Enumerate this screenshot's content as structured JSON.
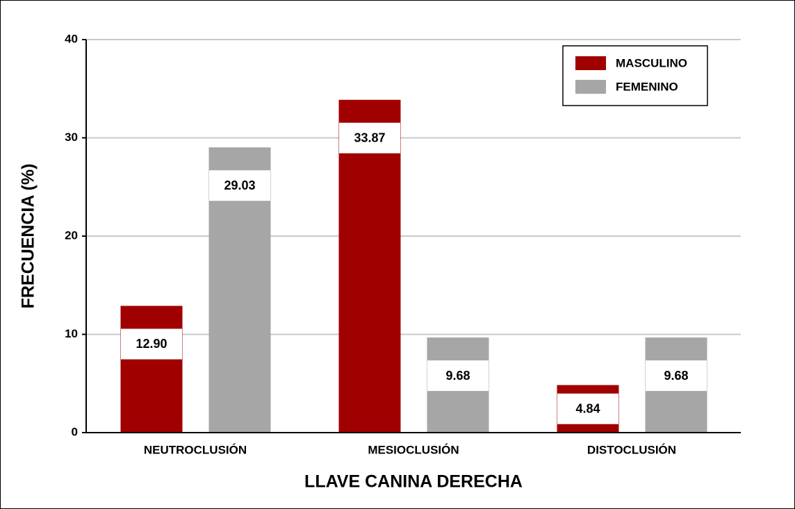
{
  "chart_data": {
    "type": "bar",
    "xlabel": "LLAVE CANINA DERECHA",
    "ylabel": "FRECUENCIA (%)",
    "categories": [
      "NEUTROCLUSIÓN",
      "MESIOCLUSIÓN",
      "DISTOCLUSIÓN"
    ],
    "series": [
      {
        "name": "MASCULINO",
        "color": "#a00000",
        "values": [
          12.9,
          33.87,
          4.84
        ],
        "value_labels": [
          "12.90",
          "33.87",
          "4.84"
        ]
      },
      {
        "name": "FEMENINO",
        "color": "#a6a6a6",
        "values": [
          29.03,
          9.68,
          9.68
        ],
        "value_labels": [
          "29.03",
          "9.68",
          "9.68"
        ]
      }
    ],
    "ylim": [
      0,
      40
    ],
    "yticks": [
      0,
      10,
      20,
      30,
      40
    ],
    "grid": true,
    "legend": "upper right"
  }
}
